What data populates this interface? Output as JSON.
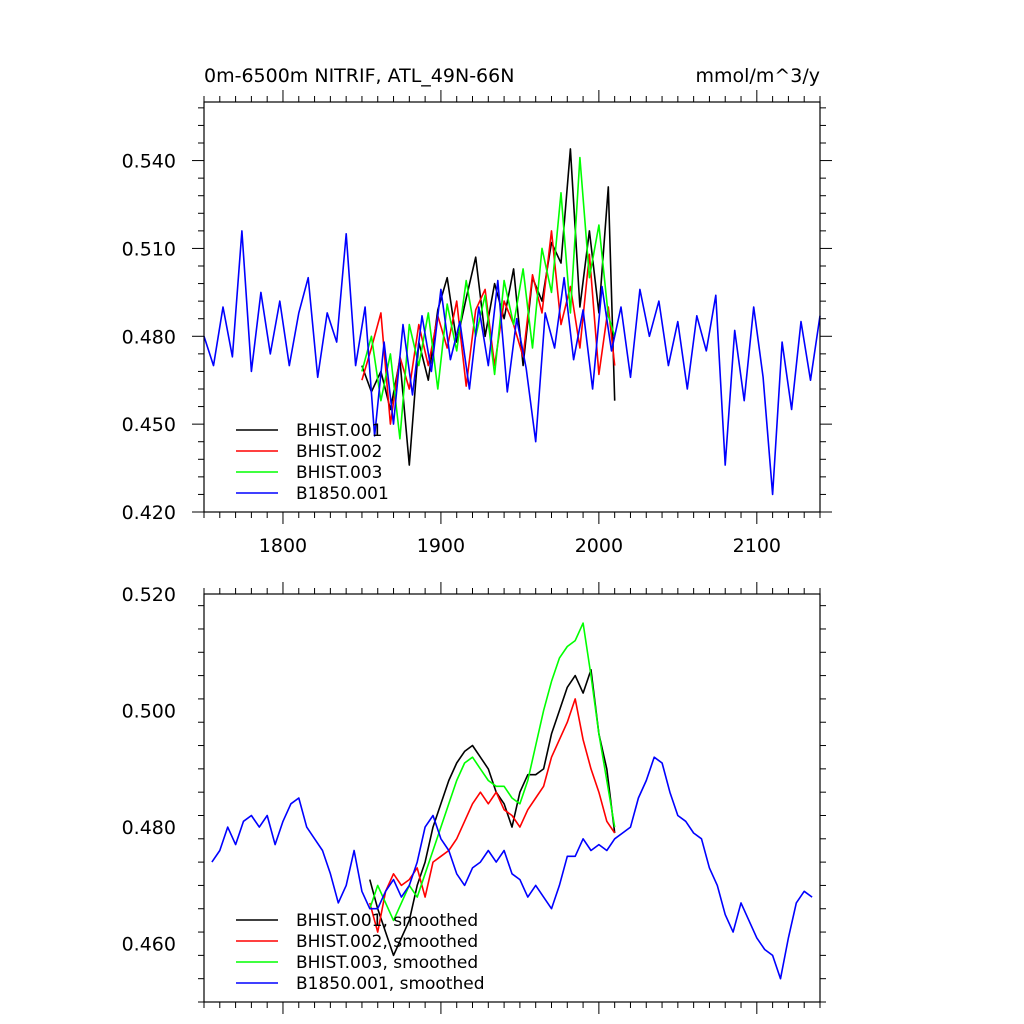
{
  "chart_data": [
    {
      "type": "line",
      "title_left": "0m-6500m NITRIF, ATL_49N-66N",
      "title_right": "mmol/m^3/y",
      "xlim": [
        1750,
        2140
      ],
      "ylim": [
        0.42,
        0.56
      ],
      "x_ticks": [
        1800,
        1900,
        2000,
        2100
      ],
      "x_tick_labels": [
        "1800",
        "1900",
        "2000",
        "2100"
      ],
      "y_ticks": [
        0.42,
        0.45,
        0.48,
        0.51,
        0.54
      ],
      "y_tick_labels": [
        "0.420",
        "0.450",
        "0.480",
        "0.510",
        "0.540"
      ],
      "legend_position": "lower-left",
      "series": [
        {
          "name": "BHIST.001",
          "color": "#000000",
          "x": [
            1850,
            1856,
            1862,
            1868,
            1874,
            1880,
            1886,
            1892,
            1898,
            1904,
            1910,
            1916,
            1922,
            1928,
            1934,
            1940,
            1946,
            1952,
            1958,
            1964,
            1970,
            1976,
            1982,
            1988,
            1994,
            2000,
            2006,
            2010
          ],
          "y": [
            0.47,
            0.461,
            0.468,
            0.455,
            0.472,
            0.436,
            0.478,
            0.465,
            0.489,
            0.5,
            0.478,
            0.493,
            0.507,
            0.48,
            0.498,
            0.486,
            0.503,
            0.47,
            0.5,
            0.492,
            0.512,
            0.505,
            0.544,
            0.49,
            0.516,
            0.488,
            0.531,
            0.458
          ]
        },
        {
          "name": "BHIST.002",
          "color": "#ff0000",
          "x": [
            1850,
            1856,
            1862,
            1868,
            1874,
            1880,
            1886,
            1892,
            1898,
            1904,
            1910,
            1916,
            1922,
            1928,
            1934,
            1940,
            1946,
            1952,
            1958,
            1964,
            1970,
            1976,
            1982,
            1988,
            1994,
            2000,
            2006,
            2010
          ],
          "y": [
            0.465,
            0.476,
            0.488,
            0.45,
            0.473,
            0.462,
            0.484,
            0.47,
            0.487,
            0.476,
            0.492,
            0.463,
            0.489,
            0.496,
            0.47,
            0.492,
            0.484,
            0.473,
            0.501,
            0.488,
            0.516,
            0.484,
            0.497,
            0.476,
            0.508,
            0.467,
            0.49,
            0.47
          ]
        },
        {
          "name": "BHIST.003",
          "color": "#00ff00",
          "x": [
            1850,
            1856,
            1862,
            1868,
            1874,
            1880,
            1886,
            1892,
            1898,
            1904,
            1910,
            1916,
            1922,
            1928,
            1934,
            1940,
            1946,
            1952,
            1958,
            1964,
            1970,
            1976,
            1982,
            1988,
            1994,
            2000,
            2006,
            2010
          ],
          "y": [
            0.468,
            0.48,
            0.458,
            0.474,
            0.445,
            0.484,
            0.47,
            0.488,
            0.462,
            0.491,
            0.475,
            0.499,
            0.48,
            0.494,
            0.467,
            0.499,
            0.484,
            0.503,
            0.476,
            0.51,
            0.495,
            0.529,
            0.488,
            0.541,
            0.5,
            0.518,
            0.487,
            0.48
          ]
        },
        {
          "name": "B1850.001",
          "color": "#0000ff",
          "x": [
            1750,
            1756,
            1762,
            1768,
            1774,
            1780,
            1786,
            1792,
            1798,
            1804,
            1810,
            1816,
            1822,
            1828,
            1834,
            1840,
            1846,
            1852,
            1858,
            1864,
            1870,
            1876,
            1882,
            1888,
            1894,
            1900,
            1906,
            1912,
            1918,
            1924,
            1930,
            1936,
            1942,
            1948,
            1954,
            1960,
            1966,
            1972,
            1978,
            1984,
            1990,
            1996,
            2002,
            2008,
            2014,
            2020,
            2026,
            2032,
            2038,
            2044,
            2050,
            2056,
            2062,
            2068,
            2074,
            2080,
            2086,
            2092,
            2098,
            2104,
            2110,
            2116,
            2122,
            2128,
            2134,
            2140
          ],
          "y": [
            0.48,
            0.47,
            0.49,
            0.473,
            0.516,
            0.468,
            0.495,
            0.474,
            0.492,
            0.47,
            0.488,
            0.5,
            0.466,
            0.488,
            0.478,
            0.515,
            0.47,
            0.49,
            0.446,
            0.478,
            0.45,
            0.484,
            0.46,
            0.487,
            0.468,
            0.496,
            0.472,
            0.485,
            0.462,
            0.49,
            0.47,
            0.499,
            0.461,
            0.486,
            0.469,
            0.444,
            0.488,
            0.476,
            0.5,
            0.472,
            0.489,
            0.462,
            0.497,
            0.475,
            0.49,
            0.466,
            0.496,
            0.48,
            0.492,
            0.47,
            0.485,
            0.462,
            0.487,
            0.475,
            0.494,
            0.436,
            0.482,
            0.458,
            0.49,
            0.466,
            0.426,
            0.478,
            0.455,
            0.485,
            0.465,
            0.487
          ]
        }
      ]
    },
    {
      "type": "line",
      "xlim": [
        1750,
        2140
      ],
      "ylim": [
        0.45,
        0.52
      ],
      "x_ticks": [
        1800,
        1900,
        2000,
        2100
      ],
      "y_ticks": [
        0.46,
        0.48,
        0.5,
        0.52
      ],
      "y_tick_labels": [
        "0.460",
        "0.480",
        "0.500",
        "0.520"
      ],
      "legend_position": "lower-left",
      "series": [
        {
          "name": "BHIST.001, smoothed",
          "color": "#000000",
          "x": [
            1855,
            1860,
            1865,
            1870,
            1875,
            1880,
            1885,
            1890,
            1895,
            1900,
            1905,
            1910,
            1915,
            1920,
            1925,
            1930,
            1935,
            1940,
            1945,
            1950,
            1955,
            1960,
            1965,
            1970,
            1975,
            1980,
            1985,
            1990,
            1995,
            2000,
            2005,
            2010
          ],
          "y": [
            0.471,
            0.466,
            0.462,
            0.458,
            0.461,
            0.464,
            0.47,
            0.474,
            0.48,
            0.484,
            0.488,
            0.491,
            0.493,
            0.494,
            0.492,
            0.49,
            0.486,
            0.484,
            0.48,
            0.486,
            0.489,
            0.489,
            0.49,
            0.496,
            0.5,
            0.504,
            0.506,
            0.503,
            0.507,
            0.496,
            0.49,
            0.479
          ]
        },
        {
          "name": "BHIST.002, smoothed",
          "color": "#ff0000",
          "x": [
            1855,
            1860,
            1865,
            1870,
            1875,
            1880,
            1885,
            1890,
            1895,
            1900,
            1905,
            1910,
            1915,
            1920,
            1925,
            1930,
            1935,
            1940,
            1945,
            1950,
            1955,
            1960,
            1965,
            1970,
            1975,
            1980,
            1985,
            1990,
            1995,
            2000,
            2005,
            2010
          ],
          "y": [
            0.467,
            0.462,
            0.469,
            0.472,
            0.47,
            0.471,
            0.473,
            0.468,
            0.474,
            0.475,
            0.476,
            0.478,
            0.481,
            0.484,
            0.486,
            0.484,
            0.486,
            0.483,
            0.482,
            0.48,
            0.483,
            0.485,
            0.487,
            0.492,
            0.495,
            0.498,
            0.502,
            0.495,
            0.49,
            0.486,
            0.481,
            0.479
          ]
        },
        {
          "name": "BHIST.003, smoothed",
          "color": "#00ff00",
          "x": [
            1855,
            1860,
            1865,
            1870,
            1875,
            1880,
            1885,
            1890,
            1895,
            1900,
            1905,
            1910,
            1915,
            1920,
            1925,
            1930,
            1935,
            1940,
            1945,
            1950,
            1955,
            1960,
            1965,
            1970,
            1975,
            1980,
            1985,
            1990,
            1995,
            2000,
            2005,
            2010
          ],
          "y": [
            0.466,
            0.47,
            0.467,
            0.464,
            0.467,
            0.47,
            0.468,
            0.472,
            0.476,
            0.48,
            0.484,
            0.488,
            0.491,
            0.492,
            0.49,
            0.488,
            0.487,
            0.487,
            0.485,
            0.484,
            0.488,
            0.494,
            0.5,
            0.505,
            0.509,
            0.511,
            0.512,
            0.515,
            0.506,
            0.496,
            0.488,
            0.48
          ]
        },
        {
          "name": "B1850.001, smoothed",
          "color": "#0000ff",
          "x": [
            1755,
            1760,
            1765,
            1770,
            1775,
            1780,
            1785,
            1790,
            1795,
            1800,
            1805,
            1810,
            1815,
            1820,
            1825,
            1830,
            1835,
            1840,
            1845,
            1850,
            1855,
            1860,
            1865,
            1870,
            1875,
            1880,
            1885,
            1890,
            1895,
            1900,
            1905,
            1910,
            1915,
            1920,
            1925,
            1930,
            1935,
            1940,
            1945,
            1950,
            1955,
            1960,
            1965,
            1970,
            1975,
            1980,
            1985,
            1990,
            1995,
            2000,
            2005,
            2010,
            2015,
            2020,
            2025,
            2030,
            2035,
            2040,
            2045,
            2050,
            2055,
            2060,
            2065,
            2070,
            2075,
            2080,
            2085,
            2090,
            2095,
            2100,
            2105,
            2110,
            2115,
            2120,
            2125,
            2130,
            2135
          ],
          "y": [
            0.474,
            0.476,
            0.48,
            0.477,
            0.481,
            0.482,
            0.48,
            0.482,
            0.477,
            0.481,
            0.484,
            0.485,
            0.48,
            0.478,
            0.476,
            0.472,
            0.467,
            0.47,
            0.476,
            0.469,
            0.466,
            0.466,
            0.469,
            0.471,
            0.468,
            0.47,
            0.474,
            0.48,
            0.482,
            0.478,
            0.476,
            0.472,
            0.47,
            0.473,
            0.474,
            0.476,
            0.474,
            0.476,
            0.472,
            0.471,
            0.468,
            0.47,
            0.468,
            0.466,
            0.47,
            0.475,
            0.475,
            0.478,
            0.476,
            0.477,
            0.476,
            0.478,
            0.479,
            0.48,
            0.485,
            0.488,
            0.492,
            0.491,
            0.486,
            0.482,
            0.481,
            0.479,
            0.478,
            0.473,
            0.47,
            0.465,
            0.462,
            0.467,
            0.464,
            0.461,
            0.459,
            0.458,
            0.454,
            0.461,
            0.467,
            0.469,
            0.468
          ]
        }
      ]
    }
  ]
}
